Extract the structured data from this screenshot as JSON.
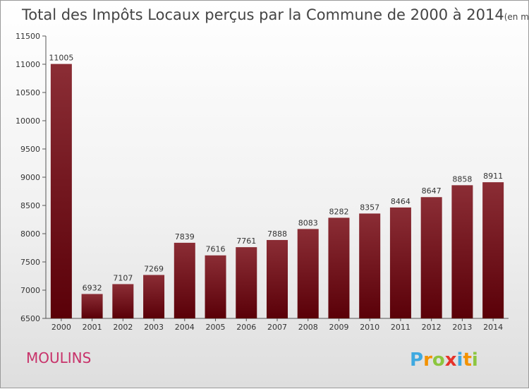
{
  "chart_data": {
    "type": "bar",
    "title": "Total des Impôts Locaux perçus par la Commune de 2000 à 2014",
    "title_unit": "(en milliers d'€)",
    "categories": [
      "2000",
      "2001",
      "2002",
      "2003",
      "2004",
      "2005",
      "2006",
      "2007",
      "2008",
      "2009",
      "2010",
      "2011",
      "2012",
      "2013",
      "2014"
    ],
    "values": [
      11005,
      6932,
      7107,
      7269,
      7839,
      7616,
      7761,
      7888,
      8083,
      8282,
      8357,
      8464,
      8647,
      8858,
      8911
    ],
    "ylim": [
      6500,
      11500
    ],
    "yticks": [
      6500,
      7000,
      7500,
      8000,
      8500,
      9000,
      9500,
      10000,
      10500,
      11000,
      11500
    ],
    "grid": false,
    "bar_color_top": "#8b2d35",
    "bar_color_bottom": "#5a0008"
  },
  "place_name": "MOULINS",
  "logo": {
    "letters": [
      "P",
      "r",
      "o",
      "x",
      "i",
      "t",
      "i"
    ],
    "colors": [
      "#3fa9e0",
      "#f39200",
      "#8cc63f",
      "#e6332a",
      "#3fa9e0",
      "#f39200",
      "#8cc63f"
    ]
  }
}
